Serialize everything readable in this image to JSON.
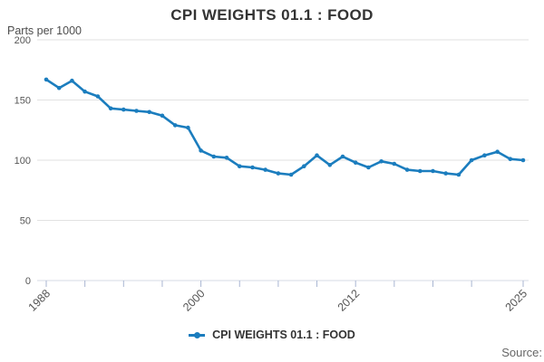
{
  "header": {
    "title": "CPI WEIGHTS 01.1 : FOOD"
  },
  "y_axis_title": "Parts per 1000",
  "legend": {
    "label": "CPI WEIGHTS 01.1 : FOOD"
  },
  "source": {
    "label": "Source:"
  },
  "colors": {
    "line": "#1b7dbe",
    "grid": "#e2e2e2",
    "axis_line": "#d6dbe4",
    "tick": "#a9b6d2",
    "tick_text": "#555555",
    "title_text": "#333333"
  },
  "chart_data": {
    "type": "line",
    "title": "CPI WEIGHTS 01.1 : FOOD",
    "ylabel": "Parts per 1000",
    "xlabel": "",
    "legend_position": "bottom",
    "grid": true,
    "marker": "circle",
    "ylim": [
      0,
      200
    ],
    "xlim": [
      1988,
      2025
    ],
    "y_ticks": [
      0,
      50,
      100,
      150,
      200
    ],
    "x_major_ticks": [
      1988,
      1991,
      1994,
      1997,
      2000,
      2003,
      2006,
      2009,
      2012,
      2015,
      2018,
      2021,
      2025
    ],
    "x_tick_labels": [
      "1988",
      "2000",
      "2012",
      "2025"
    ],
    "x_tick_label_years": [
      1988,
      2000,
      2012,
      2025
    ],
    "x": [
      1988,
      1989,
      1990,
      1991,
      1992,
      1993,
      1994,
      1995,
      1996,
      1997,
      1998,
      1999,
      2000,
      2001,
      2002,
      2003,
      2004,
      2005,
      2006,
      2007,
      2008,
      2009,
      2010,
      2011,
      2012,
      2013,
      2014,
      2015,
      2016,
      2017,
      2018,
      2019,
      2020,
      2021,
      2022,
      2023,
      2024,
      2025
    ],
    "series": [
      {
        "name": "CPI WEIGHTS 01.1 : FOOD",
        "values": [
          167,
          160,
          166,
          157,
          153,
          143,
          142,
          141,
          140,
          137,
          129,
          127,
          108,
          103,
          102,
          95,
          94,
          92,
          89,
          88,
          95,
          104,
          96,
          103,
          98,
          94,
          99,
          97,
          92,
          91,
          91,
          89,
          88,
          100,
          104,
          107,
          101,
          100
        ]
      }
    ]
  }
}
